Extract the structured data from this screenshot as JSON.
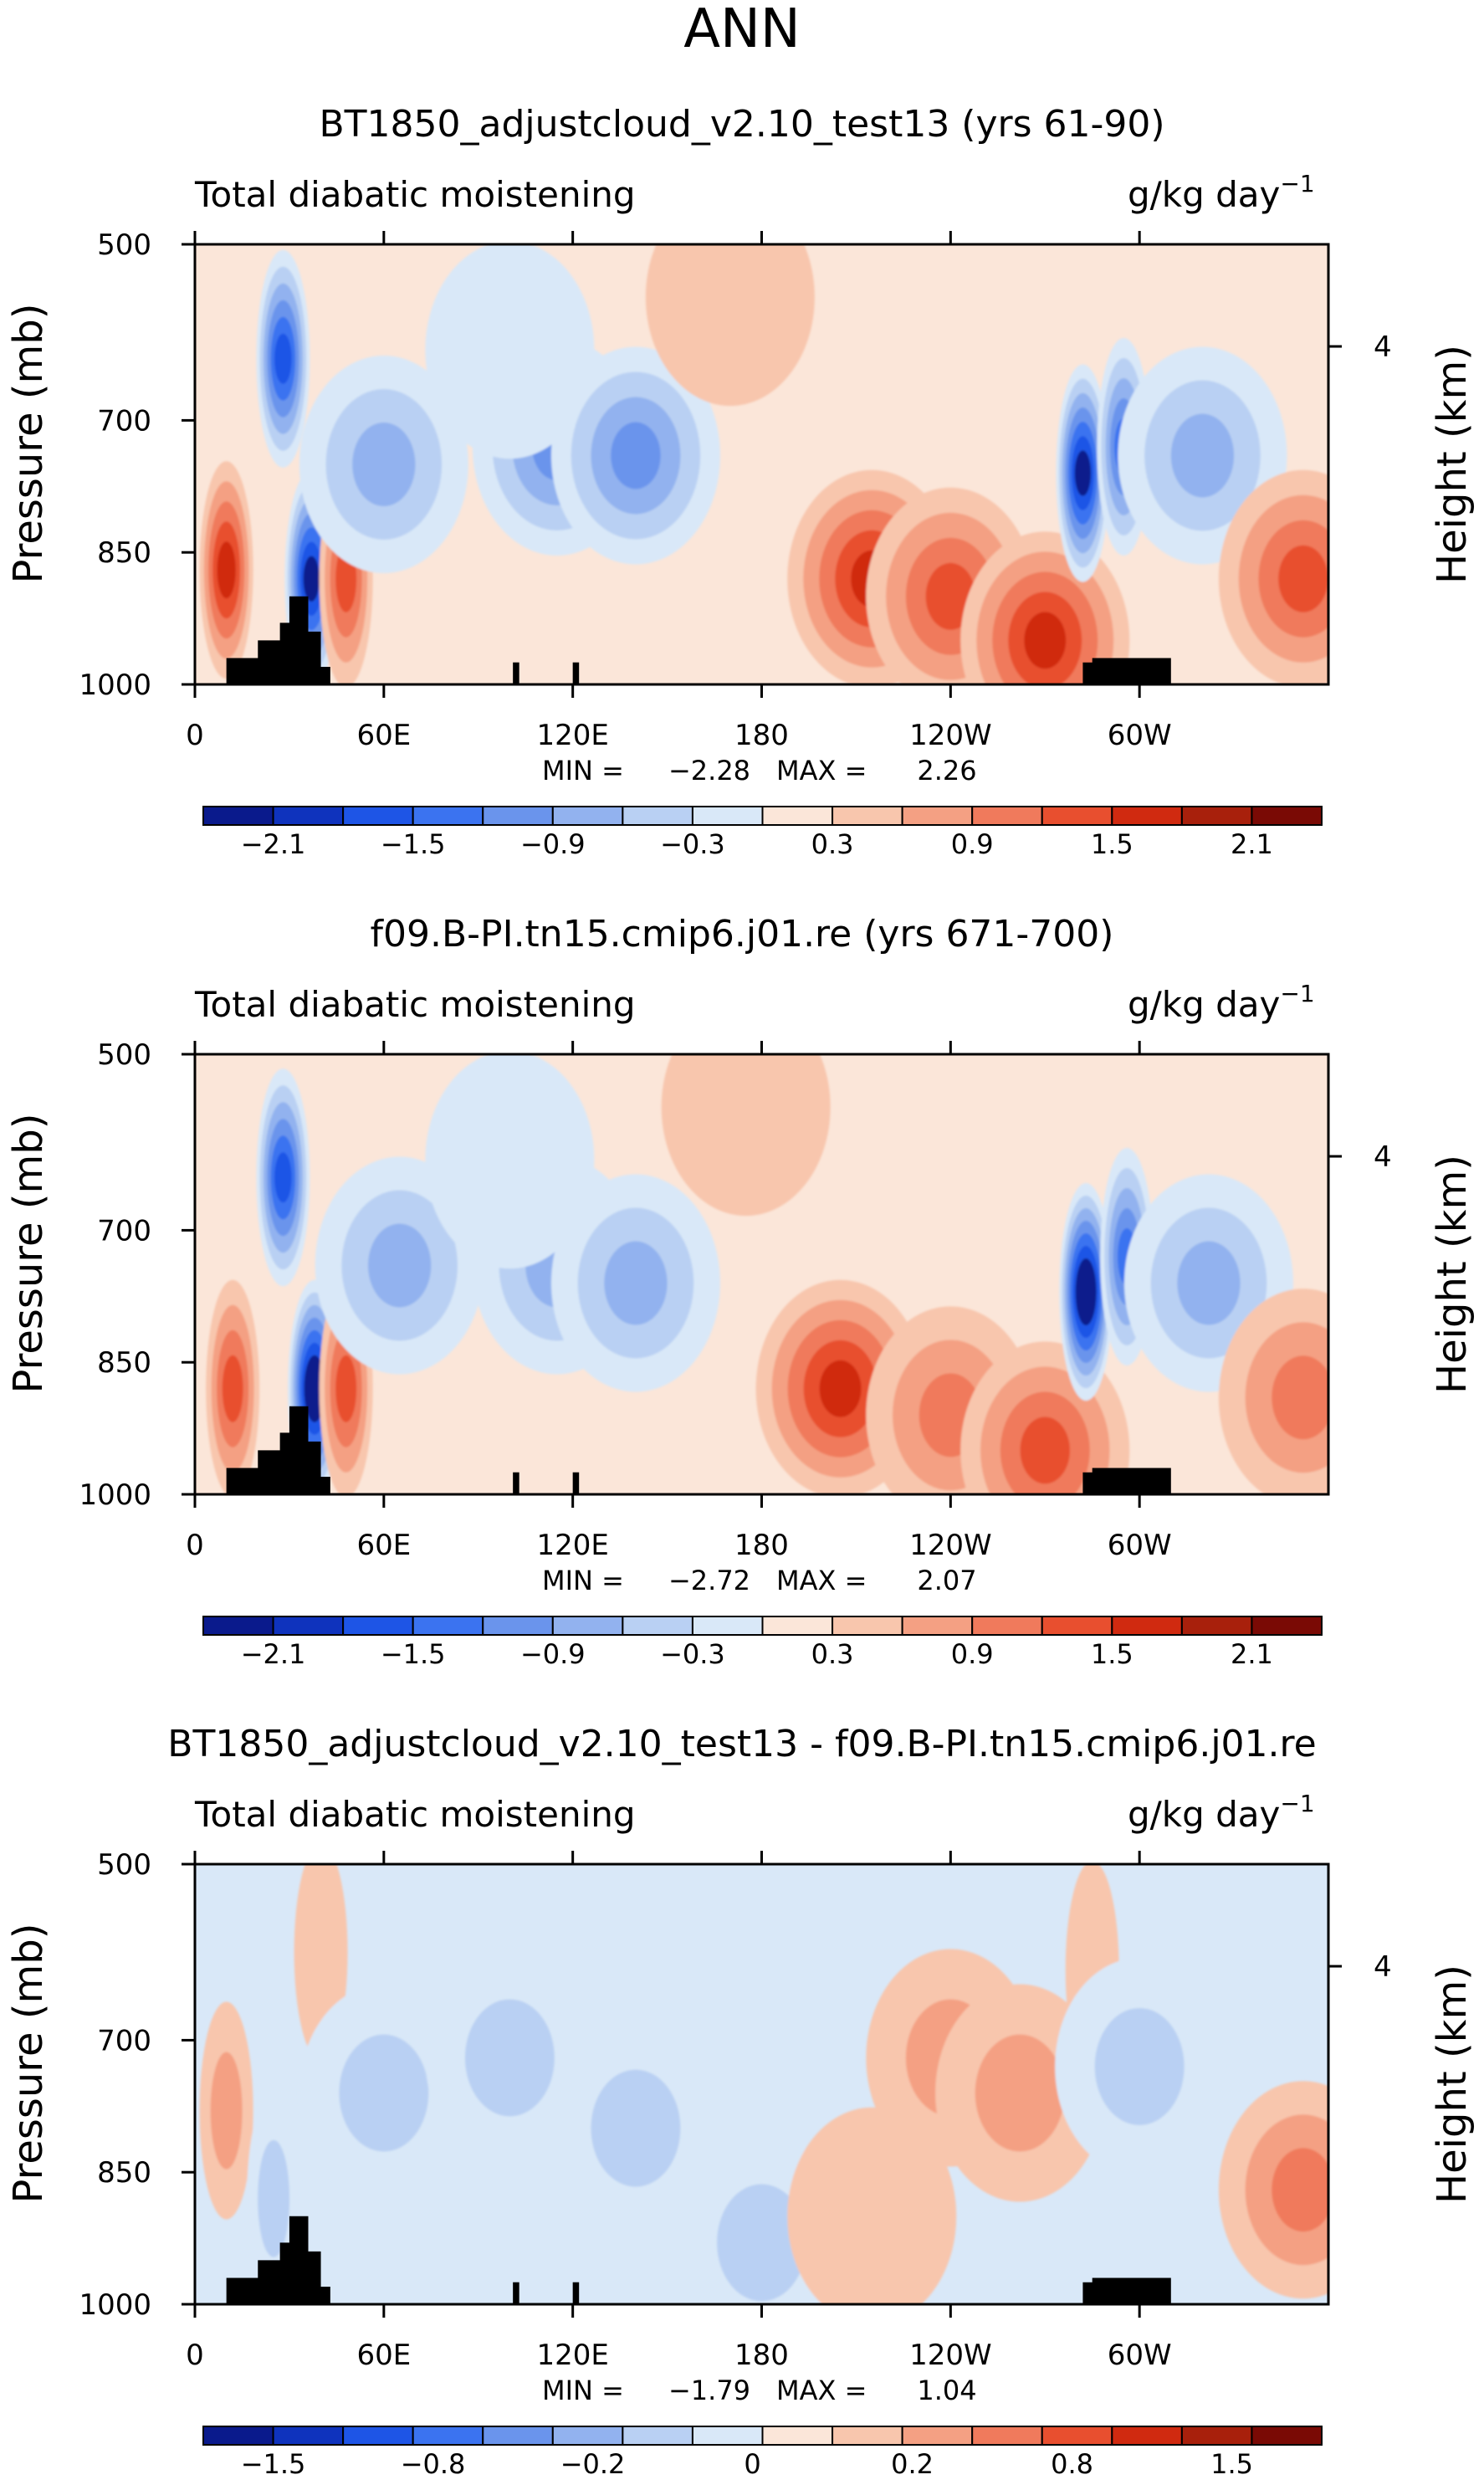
{
  "figure_title": "ANN",
  "chart_data": [
    {
      "type": "heatmap",
      "title": "BT1850_adjustcloud_v2.10_test13 (yrs 61-90)",
      "left_label": "Total diabatic moistening",
      "units_label": "g/kg day",
      "units_exp": "−1",
      "ylabel": "Pressure (mb)",
      "right_label": "Height (km)",
      "right_ticks": [
        "4"
      ],
      "yticks": [
        {
          "p": 500,
          "label": "500"
        },
        {
          "p": 700,
          "label": "700"
        },
        {
          "p": 850,
          "label": "850"
        },
        {
          "p": 1000,
          "label": "1000"
        }
      ],
      "xlim": [
        0,
        360
      ],
      "ylim": [
        1000,
        500
      ],
      "xticks": [
        {
          "lon": 0,
          "label": "0"
        },
        {
          "lon": 60,
          "label": "60E"
        },
        {
          "lon": 120,
          "label": "120E"
        },
        {
          "lon": 180,
          "label": "180"
        },
        {
          "lon": 240,
          "label": "120W"
        },
        {
          "lon": 300,
          "label": "60W"
        }
      ],
      "min_label": "MIN =",
      "min": "−2.28",
      "max_label": "MAX =",
      "max": "2.26",
      "colorbar_colors": [
        "#0a1a8c",
        "#0f33bd",
        "#1e55e6",
        "#3b73f0",
        "#6a94ec",
        "#92b2ef",
        "#b9d0f3",
        "#d9e8f8",
        "#fbe6d9",
        "#f8c6ad",
        "#f4a083",
        "#f07a5c",
        "#e84f2f",
        "#d02a10",
        "#a8200c",
        "#7a0a05"
      ],
      "colorbar_labels": [
        "−2.1",
        "−1.5",
        "−0.9",
        "−0.3",
        "0.3",
        "0.9",
        "1.5",
        "2.1"
      ],
      "field_features": [
        {
          "lon": 28,
          "p": 630,
          "value": -1.7
        },
        {
          "lon": 37,
          "p": 880,
          "value": -2.2
        },
        {
          "lon": 10,
          "p": 870,
          "value": 1.5
        },
        {
          "lon": 48,
          "p": 880,
          "value": 1.2
        },
        {
          "lon": 60,
          "p": 750,
          "value": -0.9
        },
        {
          "lon": 115,
          "p": 730,
          "value": -1.2
        },
        {
          "lon": 140,
          "p": 740,
          "value": -1.1
        },
        {
          "lon": 100,
          "p": 620,
          "value": -0.4
        },
        {
          "lon": 215,
          "p": 880,
          "value": 1.6
        },
        {
          "lon": 240,
          "p": 900,
          "value": 1.2
        },
        {
          "lon": 270,
          "p": 950,
          "value": 1.5
        },
        {
          "lon": 282,
          "p": 760,
          "value": -2.1
        },
        {
          "lon": 295,
          "p": 730,
          "value": -1.5
        },
        {
          "lon": 320,
          "p": 740,
          "value": -0.9
        },
        {
          "lon": 352,
          "p": 880,
          "value": 1.1
        },
        {
          "lon": 170,
          "p": 560,
          "value": 0.2
        }
      ]
    },
    {
      "type": "heatmap",
      "title": "f09.B-PI.tn15.cmip6.j01.re (yrs 671-700)",
      "left_label": "Total diabatic moistening",
      "units_label": "g/kg day",
      "units_exp": "−1",
      "ylabel": "Pressure (mb)",
      "right_label": "Height (km)",
      "right_ticks": [
        "4"
      ],
      "yticks": [
        {
          "p": 500,
          "label": "500"
        },
        {
          "p": 700,
          "label": "700"
        },
        {
          "p": 850,
          "label": "850"
        },
        {
          "p": 1000,
          "label": "1000"
        }
      ],
      "xlim": [
        0,
        360
      ],
      "ylim": [
        1000,
        500
      ],
      "xticks": [
        {
          "lon": 0,
          "label": "0"
        },
        {
          "lon": 60,
          "label": "60E"
        },
        {
          "lon": 120,
          "label": "120E"
        },
        {
          "lon": 180,
          "label": "180"
        },
        {
          "lon": 240,
          "label": "120W"
        },
        {
          "lon": 300,
          "label": "60W"
        }
      ],
      "min_label": "MIN =",
      "min": "−2.72",
      "max_label": "MAX =",
      "max": "2.07",
      "colorbar_colors": [
        "#0a1a8c",
        "#0f33bd",
        "#1e55e6",
        "#3b73f0",
        "#6a94ec",
        "#92b2ef",
        "#b9d0f3",
        "#d9e8f8",
        "#fbe6d9",
        "#f8c6ad",
        "#f4a083",
        "#f07a5c",
        "#e84f2f",
        "#d02a10",
        "#a8200c",
        "#7a0a05"
      ],
      "colorbar_labels": [
        "−2.1",
        "−1.5",
        "−0.9",
        "−0.3",
        "0.3",
        "0.9",
        "1.5",
        "2.1"
      ],
      "field_features": [
        {
          "lon": 28,
          "p": 640,
          "value": -1.7
        },
        {
          "lon": 38,
          "p": 880,
          "value": -2.3
        },
        {
          "lon": 12,
          "p": 880,
          "value": 1.3
        },
        {
          "lon": 48,
          "p": 880,
          "value": 1.1
        },
        {
          "lon": 65,
          "p": 740,
          "value": -0.8
        },
        {
          "lon": 115,
          "p": 740,
          "value": -1.0
        },
        {
          "lon": 140,
          "p": 760,
          "value": -1.0
        },
        {
          "lon": 100,
          "p": 620,
          "value": -0.4
        },
        {
          "lon": 205,
          "p": 880,
          "value": 1.5
        },
        {
          "lon": 240,
          "p": 910,
          "value": 1.0
        },
        {
          "lon": 270,
          "p": 950,
          "value": 1.2
        },
        {
          "lon": 283,
          "p": 770,
          "value": -2.3
        },
        {
          "lon": 296,
          "p": 730,
          "value": -1.5
        },
        {
          "lon": 322,
          "p": 760,
          "value": -0.8
        },
        {
          "lon": 352,
          "p": 890,
          "value": 0.9
        },
        {
          "lon": 175,
          "p": 560,
          "value": 0.2
        }
      ]
    },
    {
      "type": "heatmap",
      "title": "BT1850_adjustcloud_v2.10_test13 - f09.B-PI.tn15.cmip6.j01.re",
      "left_label": "Total diabatic moistening",
      "units_label": "g/kg day",
      "units_exp": "−1",
      "ylabel": "Pressure (mb)",
      "right_label": "Height (km)",
      "right_ticks": [
        "4"
      ],
      "yticks": [
        {
          "p": 500,
          "label": "500"
        },
        {
          "p": 700,
          "label": "700"
        },
        {
          "p": 850,
          "label": "850"
        },
        {
          "p": 1000,
          "label": "1000"
        }
      ],
      "xlim": [
        0,
        360
      ],
      "ylim": [
        1000,
        500
      ],
      "xticks": [
        {
          "lon": 0,
          "label": "0"
        },
        {
          "lon": 60,
          "label": "60E"
        },
        {
          "lon": 120,
          "label": "120E"
        },
        {
          "lon": 180,
          "label": "180"
        },
        {
          "lon": 240,
          "label": "120W"
        },
        {
          "lon": 300,
          "label": "60W"
        }
      ],
      "min_label": "MIN =",
      "min": "−1.79",
      "max_label": "MAX =",
      "max": "1.04",
      "colorbar_colors": [
        "#0a1a8c",
        "#0f33bd",
        "#1e55e6",
        "#3b73f0",
        "#6a94ec",
        "#92b2ef",
        "#b9d0f3",
        "#d9e8f8",
        "#fbe6d9",
        "#f8c6ad",
        "#f4a083",
        "#f07a5c",
        "#e84f2f",
        "#d02a10",
        "#a8200c",
        "#7a0a05"
      ],
      "colorbar_labels": [
        "−1.5",
        "−0.8",
        "−0.2",
        "0",
        "0.2",
        "0.8",
        "1.5"
      ],
      "field_features": [
        {
          "lon": 10,
          "p": 780,
          "value": 0.5
        },
        {
          "lon": 25,
          "p": 880,
          "value": -0.6
        },
        {
          "lon": 40,
          "p": 600,
          "value": 0.3
        },
        {
          "lon": 60,
          "p": 760,
          "value": -0.5
        },
        {
          "lon": 100,
          "p": 720,
          "value": -0.5
        },
        {
          "lon": 140,
          "p": 800,
          "value": -0.5
        },
        {
          "lon": 180,
          "p": 930,
          "value": -0.6
        },
        {
          "lon": 240,
          "p": 720,
          "value": 0.6
        },
        {
          "lon": 262,
          "p": 760,
          "value": 0.7
        },
        {
          "lon": 285,
          "p": 620,
          "value": 0.4
        },
        {
          "lon": 300,
          "p": 730,
          "value": -0.5
        },
        {
          "lon": 352,
          "p": 870,
          "value": 0.8
        },
        {
          "lon": 215,
          "p": 900,
          "value": 0.3
        }
      ]
    }
  ]
}
